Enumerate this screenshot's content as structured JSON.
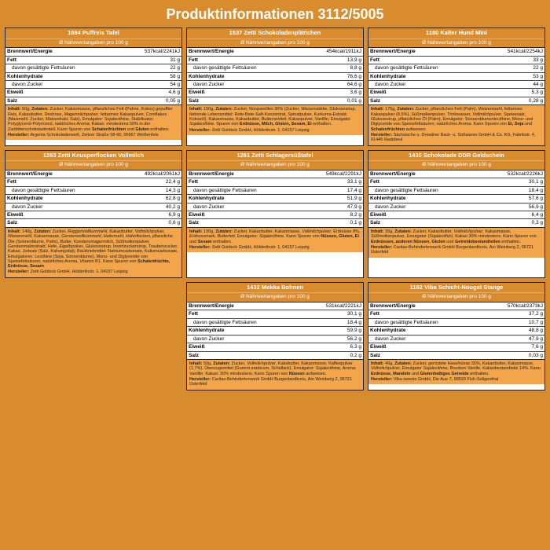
{
  "title": "Produktinformationen 3112/5005",
  "sub": "Ø Nährwertangaben pro 100 g",
  "labels": {
    "energy": "Brennwert/Energie",
    "fat": "Fett",
    "satfat": "davon gesättigte Fettsäuren",
    "carb": "Kohlenhydrate",
    "sugar": "davon Zucker",
    "protein": "Eiweiß",
    "salt": "Salz",
    "ing": "Inhalt:",
    "zut": "Zutaten:",
    "mfr": "Hersteller:"
  },
  "cards": [
    {
      "name": "1884 Puffreis Tafel",
      "n": {
        "energy": "537kcal/2241kJ",
        "fat": "31 g",
        "satfat": "22 g",
        "carb": "58 g",
        "sugar": "54 g",
        "protein": "4,6 g",
        "salt": "0,05 g"
      },
      "ing": "60g,",
      "zut": "Zucker, Kakaomasse, pflanzliches Fett (Palme, Kokos) gepuffter Reis, Kakaobutter, Dextrose, <i>Mager­milchpulver</i>, fettarmes Kakaopulver, Cornflakes (Maismehl, Zucker, <i>Malzextrakt</i>, Salz), Emulgator: <i>Sojalecithine</i>, Stabilisator: Polyglycerol-Polyricinol, natürliches Aroma; Kakao: mindestens 50% in der Zartbitterschokoladenteil. Kann Spuren von <b>Schalenfrüchten</b> und <b>Gluten</b> enthalten.",
      "mfr": "Argenta Schokoladenwelt, Zeitzer Straße 58-60, 06667 Weißenfels"
    },
    {
      "name": "1537 Zetti Schokoladenplättchen",
      "n": {
        "energy": "454kcal/1911kJ",
        "fat": "13,9 g",
        "satfat": "8,8 g",
        "carb": "76,6 g",
        "sugar": "64,6 g",
        "protein": "3,6 g",
        "salt": "0,01 g"
      },
      "ing": "150g,",
      "zut": "Zucker, Nonpareilles 30% (Zucker, <i>Weizenstärke</i>, Glukosesirup, färbende Lebensmittel: Rote-Bete-Saft-Konzentrat, Spinatpulver, Kurkuma-Extrakt; Kokosöl), Kakaomasse, Kakaobutter, <i>Butterreinfett</i>, Kakaopulver, Vanillin, Emulgator <i>Sojalecithine</i>. Spuren von <b>Erdnüsse, Milch, Gluten, Sesam, Ei</b> enthalten.",
      "mfr": "Zetti Goldeck GmbH, Hölderlinstr. 1, 04157 Leipzig"
    },
    {
      "name": "1180 Kalter Hund Mini",
      "n": {
        "energy": "541kcal/2254kJ",
        "fat": "33 g",
        "satfat": "22 g",
        "carb": "53 g",
        "sugar": "44 g",
        "protein": "5,3 g",
        "salt": "0,28 g"
      },
      "ing": "175g,",
      "zut": "Zucker, pflanzliches Fett (Palm), <i>Weizenmehl</i>, fettarmes Kakaopulver (8,5%), <i>Süßmolken­pulver</i>, Trinkwasser, <i>Vollmilchpulver</i>, Speisesalz, Glukosesirup, pflanzliches Öl (Palm), Emulgator: Sonnenblumenlecithine, Mono- und Diglyceride von Speisefettsäuren; natürliches Aroma. Kann Spuren von <b>Ei, Soja</b> und <b>Schalenfrüchten</b> aufweisen.",
      "mfr": "Sächsische u. Dresdner Back- u. Süßwaren GmbH & Co. KG, Fabrikstr. 4, 01445 Radebeul"
    },
    {
      "name": "1263 Zetti Knusperflocken Vollmilch",
      "n": {
        "energy": "492kcal/2061kJ",
        "fat": "22,4 g",
        "satfat": "14,3 g",
        "carb": "62,8 g",
        "sugar": "40,2 g",
        "protein": "6,9 g",
        "salt": "0,6 g"
      },
      "ing": "140g,",
      "zut": "Zucker, <i>Roggenvollkornmehl</i>, Kakaobutter, <i>Vollmilchpulver, Weizenmehl</i>, Kakaomasse, <i>Gerstenvollkornmehl, Hafermehl, Haferflocken</i>, pflanzliche Öle (Sonnenblume, Palm), <i>Butter, Kondensmager­milch, Süßmolkenpulver, Gerstenmalzextrakt</i>, Hefe, <i>Ei­gelbpulver</i>, Glukosesirup, Invertzuckersirup, Traubenzucker, Kakao, Jodsalz (Salz, Kaliumjodat), Backtriebmittel: Natriumcarbonate, Kaliumcarbonate, Emulgatoren: Lecithine (Soja, Sonnenblume), Mono- und Diglyceride von Speisefettsäuren, natürliches Aroma, Vitamin B1. Kann Spuren von <b>Schalenfrüchte, Erdnüsse, Sesam</b>.",
      "mfr": "Zetti Goldeck GmbH, Hölderlinstr. 1, 04157 Leipzig"
    },
    {
      "name": "1261 Zetti Schlagersüßtafel",
      "n": {
        "energy": "549kcal/2291kJ",
        "fat": "33,1 g",
        "satfat": "17,4 g",
        "carb": "51,9 g",
        "sugar": "47,9 g",
        "protein": "8,2 g",
        "salt": "0,1 g"
      },
      "ing": "100g,",
      "zut": "Zucker, Kakaobutter, Kakaomasse, <i>Vollmilchpulver</i>, Erdnüsse 8%, <i>Erdnussmark, Butterfett</i>, Emulgator: <i>Sojalecithine</i>. Kann Spuren von <b>Nüssen, Gluten, Ei</b> und <b>Sesam</b> enthalten.",
      "mfr": "Zetti Goldeck GmbH, Hölderlinstr. 1, 04157 Leipzig"
    },
    {
      "name": "1430 Schokolade DDR Geldschein",
      "n": {
        "energy": "532kcal/2226kJ",
        "fat": "30,1 g",
        "satfat": "18,4 g",
        "carb": "57,6 g",
        "sugar": "56,9 g",
        "protein": "6,4 g",
        "salt": "0,3 g"
      },
      "ing": "30g,",
      "zut": "Zucker, Kakaobutter, <i>Vollmilchpulver</i>, Kakaomasse, <i>Süßmolkenpulver</i>, Emulgator (<i>Sojalecithin</i>), Kakao 30% mindestens. Kann Spuren von <b>Erdnüssen, anderen Nüssen, Gluten</b> und <b>Getreidebestandteilen</b> enthalten.",
      "mfr": "Caritas-Behindertenwerk GmbH Burgenlandkreis, Am Weinberg 2, 06721 Osterfeld"
    },
    {
      "name": "1432 Mokka Bohnen",
      "n": {
        "energy": "531kcal/2221kJ",
        "fat": "30,1 g",
        "satfat": "18,4 g",
        "carb": "59,9 g",
        "sugar": "56,2 g",
        "protein": "6,3 g",
        "salt": "0,2 g"
      },
      "ing": "50g,",
      "zut": "Zucker, <i>Vollmilchpulver</i>, Kakobutter, Kakaomasse, Kaffeepulver (1,7%), Überzugsmittel (Gummi arabicum, Schellack), Emulgator: <i>Sojalecithine</i>, Aroma: Vanillin. Kakao: 30% mindestens. Kann Spuren von <b>Nüssen</b> aufweisen.",
      "mfr": "Caritas-Behindertenwerk GmbH Burgenlandkreis, Am Weinberg 2, 06721 Osterfeld"
    },
    {
      "name": "1162 Viba Schicht-Nougat Stange",
      "n": {
        "energy": "570kcal/2373kJ",
        "fat": "37,2 g",
        "satfat": "10,7 g",
        "carb": "48,8 g",
        "sugar": "47,9 g",
        "protein": "7,6 g",
        "salt": "0,03 g"
      },
      "ing": "40g,",
      "zut": "Zucker, geröstete <i>Haselnüsse</i> 35%, Kakaobutter, Kakaomasse, <i>Vollmilchpulver</i>, Emulgator <i>Sojalecithine</i>, Bourbon Vanille. Kakaobestandteile 14%. Kann <b>Erd­nüsse, Mandeln</b> und <b>Glutenhaltiges Getreide</b> enthalten.",
      "mfr": "Viba sweets GmbH, Die Aue 7, 98593 Floh-Seligenthal"
    }
  ]
}
